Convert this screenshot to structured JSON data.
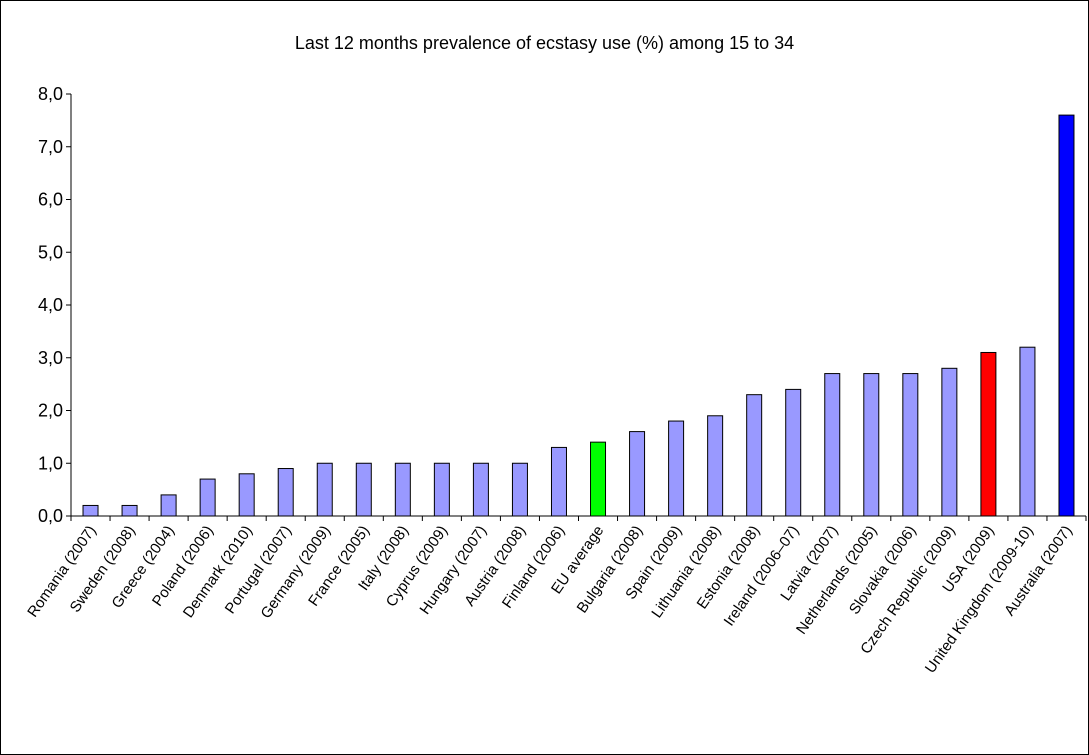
{
  "chart_data": {
    "type": "bar",
    "title": "Last 12 months prevalence of ecstasy use (%) among 15 to 34",
    "xlabel": "",
    "ylabel": "",
    "ylim": [
      0,
      8
    ],
    "yticks": [
      "0,0",
      "1,0",
      "2,0",
      "3,0",
      "4,0",
      "5,0",
      "6,0",
      "7,0",
      "8,0"
    ],
    "grid": false,
    "legend": "none",
    "categories": [
      "Romania (2007)",
      "Sweden (2008)",
      "Greece (2004)",
      "Poland (2006)",
      "Denmark (2010)",
      "Portugal (2007)",
      "Germany (2009)",
      "France (2005)",
      "Italy (2008)",
      "Cyprus (2009)",
      "Hungary (2007)",
      "Austria (2008)",
      "Finland (2006)",
      "EU average",
      "Bulgaria (2008)",
      "Spain (2009)",
      "Lithuania (2008)",
      "Estonia (2008)",
      "Ireland (2006–07)",
      "Latvia (2007)",
      "Netherlands (2005)",
      "Slovakia (2006)",
      "Czech Republic (2009)",
      "USA (2009)",
      "United Kingdom (2009-10)",
      "Australia (2007)"
    ],
    "values": [
      0.2,
      0.2,
      0.4,
      0.7,
      0.8,
      0.9,
      1.0,
      1.0,
      1.0,
      1.0,
      1.0,
      1.0,
      1.3,
      1.4,
      1.6,
      1.8,
      1.9,
      2.3,
      2.4,
      2.7,
      2.7,
      2.7,
      2.8,
      3.1,
      3.2,
      7.6
    ],
    "colors": {
      "default": "#9999ff",
      "highlights": {
        "EU average": "#00ff00",
        "USA (2009)": "#ff0000",
        "Australia (2007)": "#0000ff"
      }
    }
  }
}
